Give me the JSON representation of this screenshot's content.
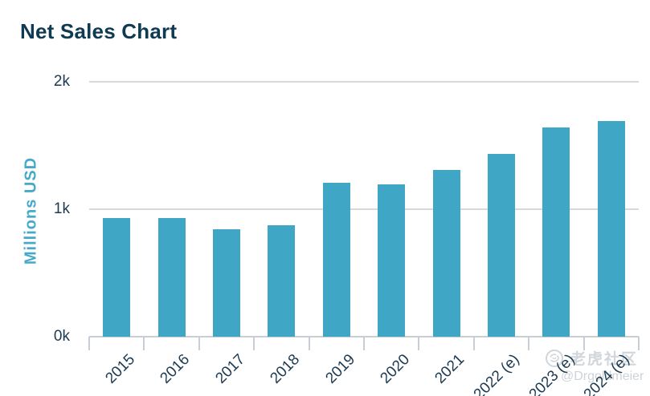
{
  "page": {
    "title": "Net Sales Chart"
  },
  "chart_data": {
    "type": "bar",
    "title": "Net Sales Chart",
    "xlabel": "",
    "ylabel": "Millions USD",
    "categories": [
      "2015",
      "2016",
      "2017",
      "2018",
      "2019",
      "2020",
      "2021",
      "2022 (e)",
      "2023 (e)",
      "2024 (e)"
    ],
    "values": [
      930,
      930,
      840,
      875,
      1210,
      1195,
      1310,
      1435,
      1640,
      1690
    ],
    "ylim": [
      0,
      2000
    ],
    "yticks": [
      {
        "value": 0,
        "label": "0k"
      },
      {
        "value": 1000,
        "label": "1k"
      },
      {
        "value": 2000,
        "label": "2k"
      }
    ],
    "grid": "horizontal",
    "legend": "none",
    "bar_color": "#3FA6C6"
  },
  "colors": {
    "background": "#FFFFFF",
    "title_text": "#0E3A52",
    "tick_text": "#1C3A52",
    "axis_title": "#47A9C9",
    "bar": "#3FA6C6",
    "gridline": "#D9D9D9",
    "axis_line": "#C7CED8",
    "watermark": "#D2D6DA"
  },
  "watermark": {
    "icon": "tiger-logo-icon",
    "community_label": "老虎社区",
    "handle": "@Drgoldmeier"
  }
}
